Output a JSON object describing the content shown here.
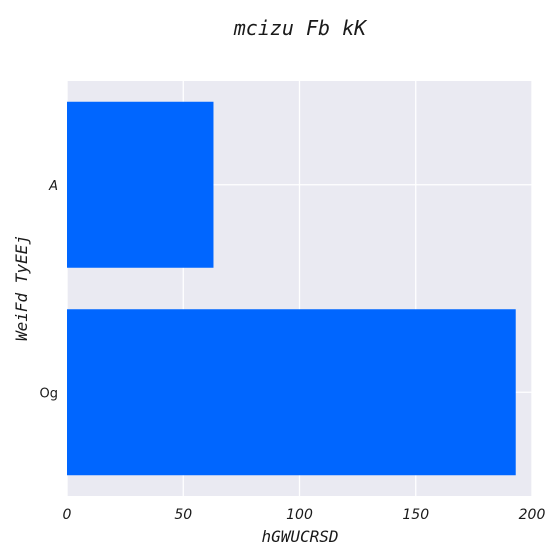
{
  "chart_data": {
    "type": "bar",
    "orientation": "horizontal",
    "title": "mcizu Fb kK",
    "xlabel": "hGWUCRSD",
    "ylabel": "WeiFd TyEEj",
    "categories": [
      "A",
      "Og"
    ],
    "values": [
      63,
      193
    ],
    "xlim": [
      0,
      200
    ],
    "xticks": [
      "0",
      "50",
      "100",
      "150",
      "200"
    ],
    "grid": true,
    "bar_color": "#0066ff",
    "plot_background": "#eaeaf2"
  }
}
